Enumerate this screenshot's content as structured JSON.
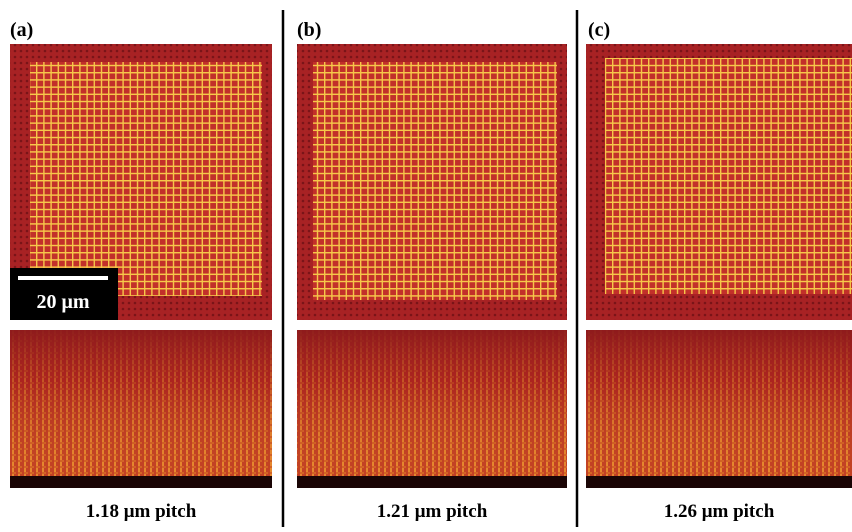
{
  "panels": [
    {
      "label": "(a)",
      "caption": "1.18 μm pitch"
    },
    {
      "label": "(b)",
      "caption": "1.21 μm pitch"
    },
    {
      "label": "(c)",
      "caption": "1.26 μm pitch"
    }
  ],
  "scale_bar": "20 μm"
}
